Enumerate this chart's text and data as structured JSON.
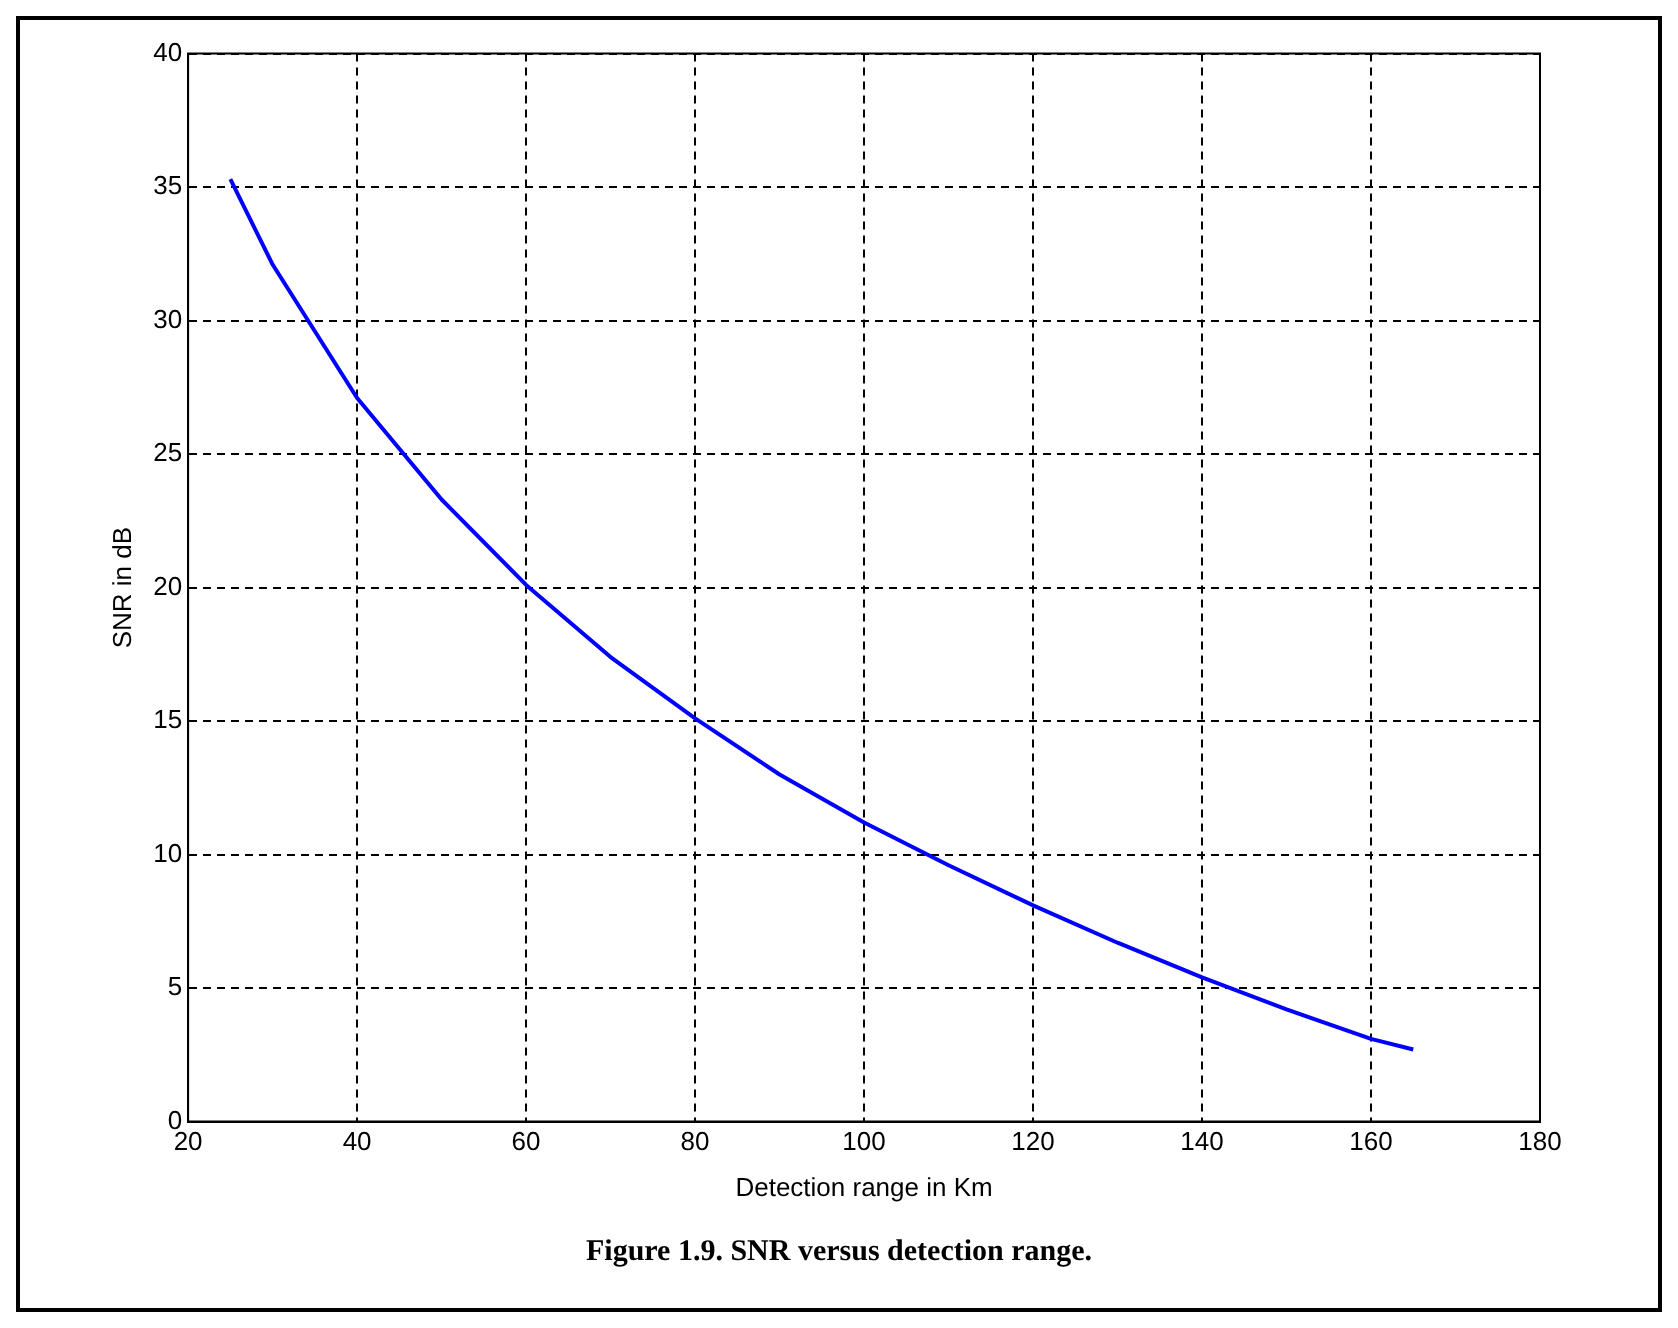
{
  "chart_data": {
    "type": "line",
    "xlabel": "Detection range in Km",
    "ylabel": "SNR in dB",
    "x": [
      25,
      30,
      40,
      50,
      60,
      70,
      80,
      90,
      100,
      110,
      120,
      130,
      140,
      150,
      160,
      165
    ],
    "series": [
      {
        "color": "#0000ff",
        "values": [
          35.3,
          32.1,
          27.1,
          23.3,
          20.1,
          17.4,
          15.1,
          13.0,
          11.2,
          9.6,
          8.1,
          6.7,
          5.4,
          4.2,
          3.1,
          2.7
        ]
      }
    ],
    "xlim": [
      20,
      180
    ],
    "xticks": [
      20,
      40,
      60,
      80,
      100,
      120,
      140,
      160,
      180
    ],
    "ylim": [
      0,
      40
    ],
    "yticks": [
      0,
      5,
      10,
      15,
      20,
      25,
      30,
      35,
      40
    ],
    "grid": true,
    "legend": false,
    "marker": "none",
    "line_style": "solid",
    "annotations": [
      "Figure 1.9. SNR versus detection range."
    ]
  }
}
